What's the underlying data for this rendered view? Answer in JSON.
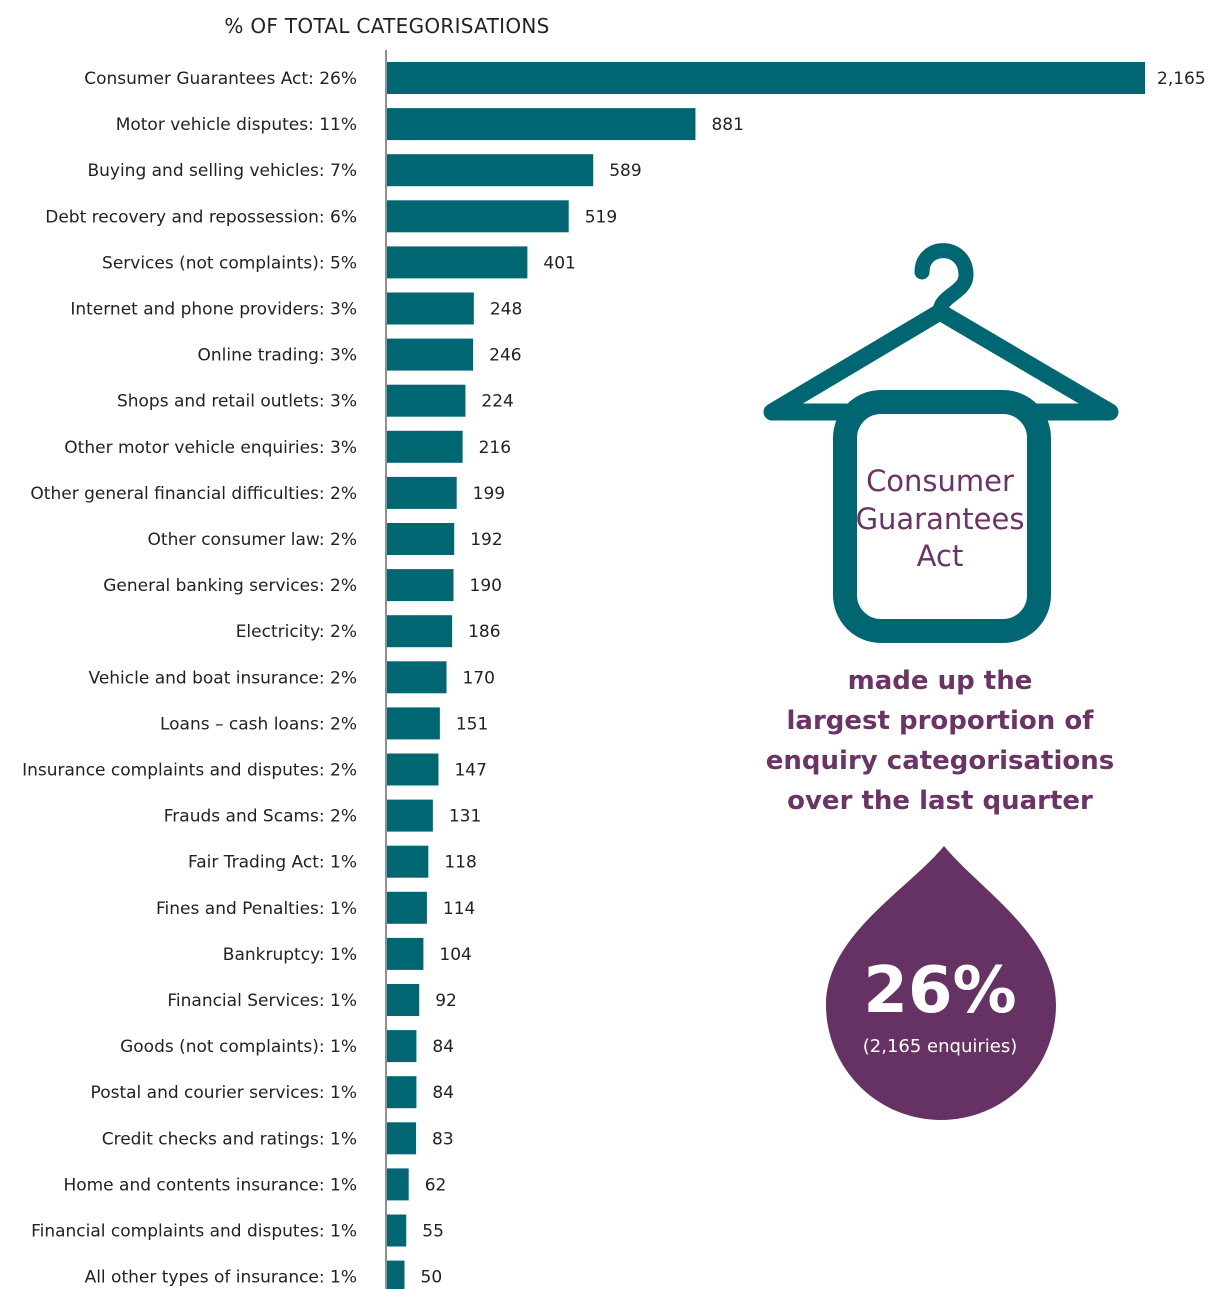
{
  "chart_data": {
    "type": "bar",
    "orientation": "horizontal",
    "title": "% OF TOTAL CATEGORISATIONS",
    "bar_color": "#006772",
    "categories": [
      "Consumer Guarantees Act: 26%",
      "Motor vehicle disputes: 11%",
      "Buying and selling vehicles: 7%",
      "Debt recovery and repossession: 6%",
      "Services (not complaints): 5%",
      "Internet and phone providers: 3%",
      "Online trading: 3%",
      "Shops and retail outlets: 3%",
      "Other motor vehicle enquiries: 3%",
      "Other general financial difficulties: 2%",
      "Other consumer law: 2%",
      "General banking services: 2%",
      "Electricity: 2%",
      "Vehicle and boat insurance: 2%",
      "Loans – cash loans: 2%",
      "Insurance complaints and disputes: 2%",
      "Frauds and Scams: 2%",
      "Fair Trading Act: 1%",
      "Fines and Penalties: 1%",
      "Bankruptcy: 1%",
      "Financial Services: 1%",
      "Goods (not complaints): 1%",
      "Postal and courier services: 1%",
      "Credit checks and ratings: 1%",
      "Home and contents insurance: 1%",
      "Financial complaints and disputes: 1%",
      "All other types of insurance: 1%"
    ],
    "values": [
      2165,
      881,
      589,
      519,
      401,
      248,
      246,
      224,
      216,
      199,
      192,
      190,
      186,
      170,
      151,
      147,
      131,
      118,
      114,
      104,
      92,
      84,
      84,
      83,
      62,
      55,
      50
    ],
    "value_labels": [
      "2,165",
      "881",
      "589",
      "519",
      "401",
      "248",
      "246",
      "224",
      "216",
      "199",
      "192",
      "190",
      "186",
      "170",
      "151",
      "147",
      "131",
      "118",
      "114",
      "104",
      "92",
      "84",
      "84",
      "83",
      "62",
      "55",
      "50"
    ],
    "xlim": [
      0,
      2165
    ],
    "grid": false,
    "legend": "none"
  },
  "callout": {
    "hanger_icon": "clothes-hanger-icon",
    "hanger_color": "#006772",
    "hanger_lines": [
      "Consumer",
      "Guarantees",
      "Act"
    ],
    "statement_lines": [
      "made up the",
      "largest proportion of",
      "enquiry categorisations",
      "over the last quarter"
    ],
    "drop_icon": "drop-icon",
    "drop_color": "#663264",
    "text_color": "#6b3366",
    "percent": "26%",
    "detail": "(2,165 enquiries)"
  }
}
